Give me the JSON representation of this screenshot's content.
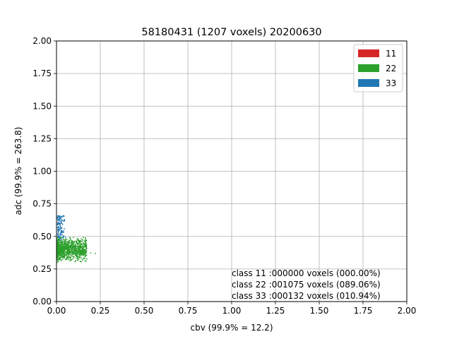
{
  "chart_data": {
    "type": "scatter",
    "title": "58180431 (1207 voxels) 20200630",
    "xlabel": "cbv (99.9% = 12.2)",
    "ylabel": "adc (99.9% = 263.8)",
    "xlim": [
      0,
      2
    ],
    "ylim": [
      0,
      2
    ],
    "x_ticks": [
      "0.00",
      "0.25",
      "0.50",
      "0.75",
      "1.00",
      "1.25",
      "1.50",
      "1.75",
      "2.00"
    ],
    "y_ticks": [
      "0.00",
      "0.25",
      "0.50",
      "0.75",
      "1.00",
      "1.25",
      "1.50",
      "1.75",
      "2.00"
    ],
    "grid": true,
    "legend_position": "top-right",
    "series": [
      {
        "name": "11",
        "color": "#d62728",
        "count": 0,
        "points": []
      },
      {
        "name": "22",
        "color": "#2ca02c",
        "count": 1075,
        "x_range": [
          0.0,
          0.25
        ],
        "y_range": [
          0.29,
          0.56
        ]
      },
      {
        "name": "33",
        "color": "#1f77b4",
        "count": 132,
        "x_range": [
          0.0,
          0.08
        ],
        "y_range": [
          0.44,
          0.67
        ]
      }
    ],
    "annotations": [
      "class 11 :000000 voxels (000.00%)",
      "class 22 :001075 voxels (089.06%)",
      "class 33 :000132 voxels (010.94%)"
    ]
  }
}
